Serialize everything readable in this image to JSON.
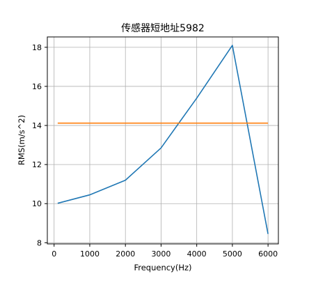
{
  "chart_data": {
    "type": "line",
    "title": "传感器短地址5982",
    "xlabel": "Frequency(Hz)",
    "ylabel": "RMS(m/s^2)",
    "x": [
      100,
      1000,
      2000,
      3000,
      4000,
      5000,
      6000
    ],
    "series": [
      {
        "values": [
          10.02,
          10.45,
          11.2,
          12.85,
          15.4,
          18.1,
          8.45
        ],
        "color": "#1f77b4"
      },
      {
        "values": [
          14.12,
          14.12,
          14.12,
          14.12,
          14.12,
          14.12,
          14.12
        ],
        "color": "#ff7f0e"
      }
    ],
    "xlim": [
      -190,
      6290
    ],
    "ylim": [
      7.94,
      18.53
    ],
    "xticks": [
      0,
      1000,
      2000,
      3000,
      4000,
      5000,
      6000
    ],
    "yticks": [
      8,
      10,
      12,
      14,
      16,
      18
    ],
    "grid": true
  }
}
